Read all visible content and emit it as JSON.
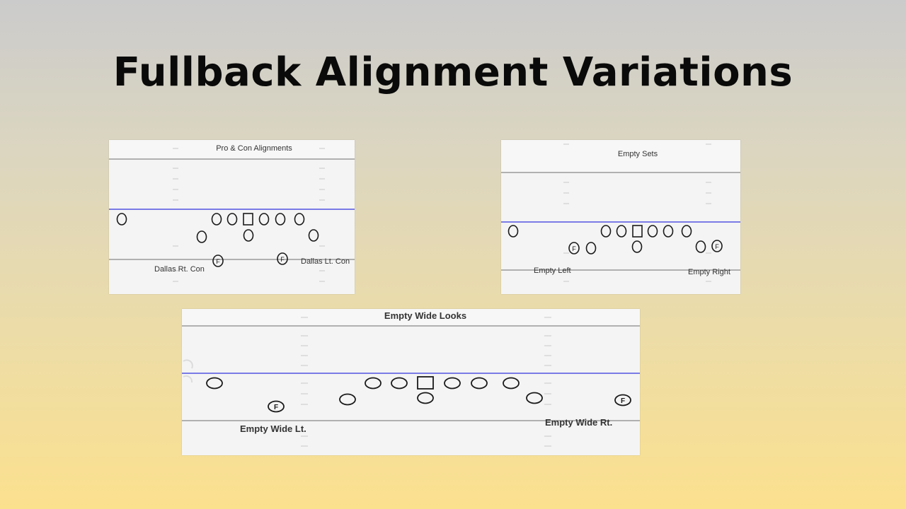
{
  "slide": {
    "title": "Fullback Alignment Variations"
  },
  "diagrams": {
    "pro_con": {
      "title": "Pro & Con Alignments",
      "left_label": "Dallas Rt. Con",
      "right_label": "Dallas Lt. Con",
      "fullback_mark": "F"
    },
    "empty_sets": {
      "title": "Empty Sets",
      "left_label": "Empty Left",
      "right_label": "Empty Right",
      "fullback_mark": "F"
    },
    "empty_wide": {
      "title": "Empty Wide Looks",
      "left_label": "Empty Wide Lt.",
      "right_label": "Empty Wide Rt.",
      "fullback_mark": "F"
    }
  },
  "colors": {
    "line_of_scrimmage": "#7b7be6",
    "yard_line": "#9a9a9a",
    "player_stroke": "#1a1a1a",
    "panel_bg": "#f4f4f4"
  }
}
